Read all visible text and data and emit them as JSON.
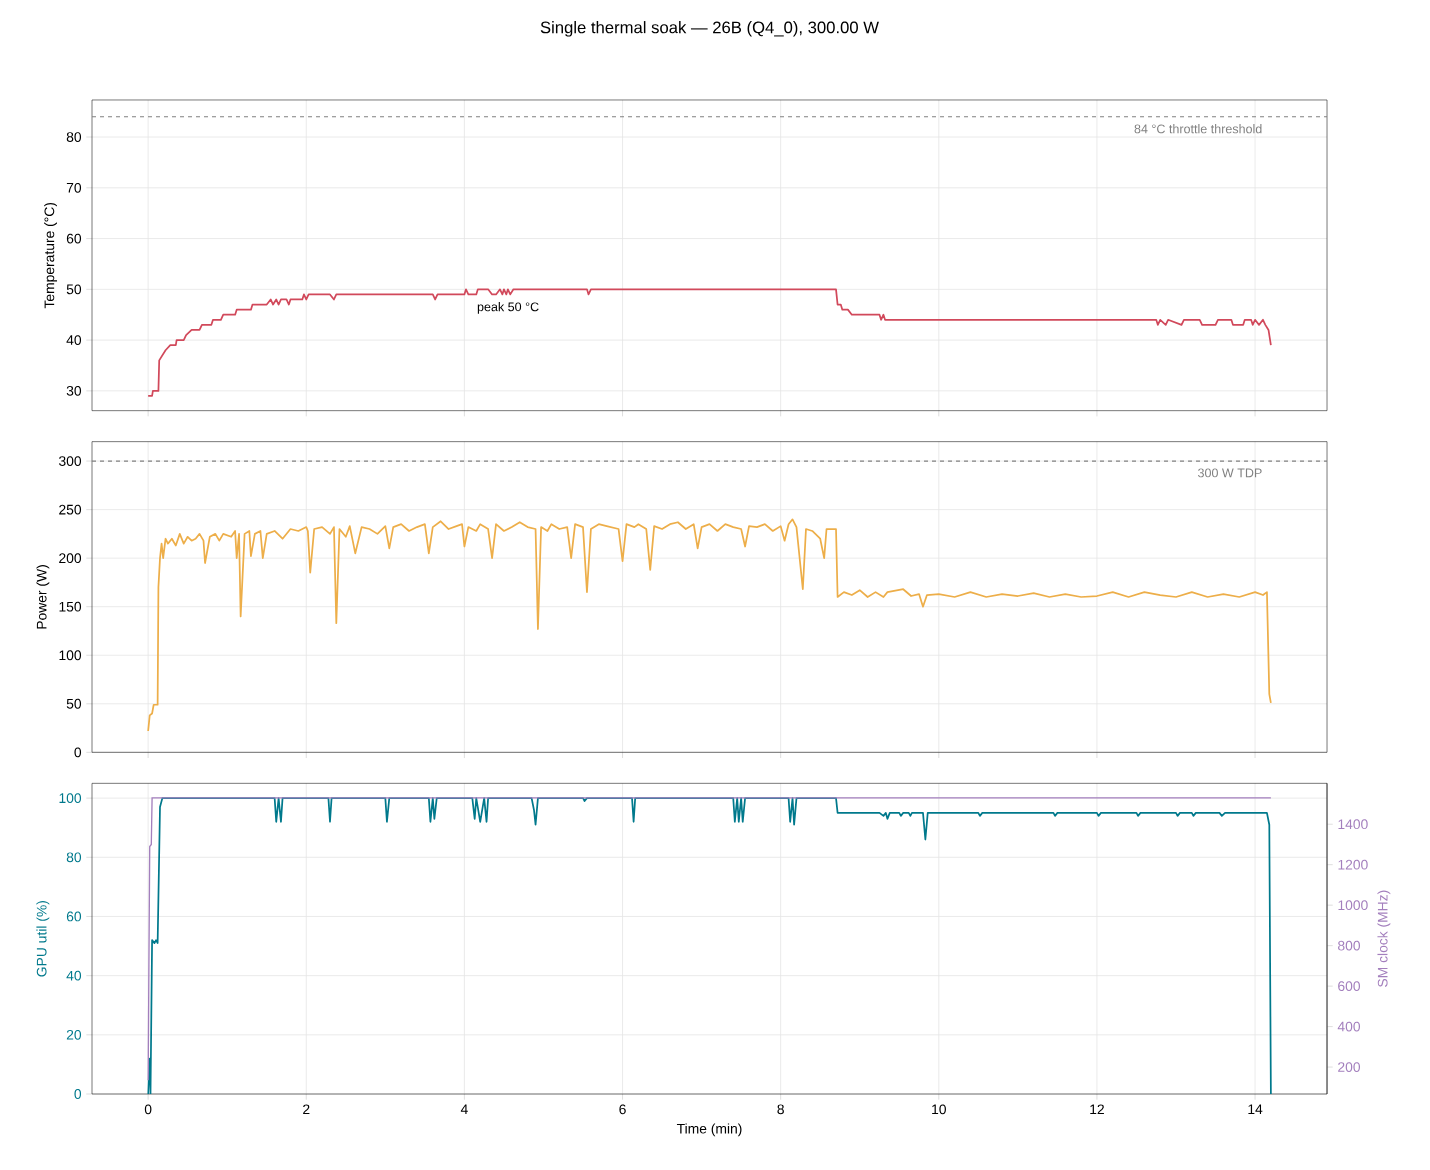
{
  "chart_data": [
    {
      "type": "line",
      "title": "Single thermal soak — 26B (Q4_0), 300.00 W",
      "ylabel": "Temperature (°C)",
      "tick_labels": "y",
      "grid": true,
      "xlim": [
        -0.71,
        14.91
      ],
      "xticks": [
        0,
        2,
        4,
        6,
        8,
        10,
        12,
        14
      ],
      "ylim": [
        26.1,
        87.3
      ],
      "yticks": [
        30,
        40,
        50,
        60,
        70,
        80
      ],
      "ref_lines": [
        {
          "axis": "y",
          "value": 84,
          "label": "84 °C throttle threshold",
          "color": "#808080",
          "line_style": "dashed"
        }
      ],
      "annotations": [
        {
          "text": "peak 50 °C",
          "x": 4.1,
          "y": 50
        }
      ],
      "series": [
        {
          "color": "#d1495b",
          "x": [
            0,
            0.05,
            0.06,
            0.13,
            0.14,
            0.18,
            0.22,
            0.28,
            0.35,
            0.36,
            0.45,
            0.48,
            0.55,
            0.65,
            0.68,
            0.8,
            0.82,
            0.92,
            0.95,
            1.1,
            1.12,
            1.3,
            1.32,
            1.5,
            1.55,
            1.58,
            1.62,
            1.65,
            1.68,
            1.75,
            1.78,
            1.8,
            1.95,
            1.97,
            2.0,
            2.03,
            2.3,
            2.35,
            2.38,
            3.6,
            3.63,
            3.66,
            4.0,
            4.02,
            4.05,
            4.15,
            4.17,
            4.3,
            4.35,
            4.4,
            4.45,
            4.48,
            4.5,
            4.53,
            4.55,
            4.58,
            4.62,
            5.55,
            5.57,
            5.6,
            8.7,
            8.72,
            8.76,
            8.78,
            8.85,
            8.9,
            9.25,
            9.27,
            9.3,
            9.32,
            12.75,
            12.77,
            12.8,
            12.87,
            12.9,
            13.07,
            13.1,
            13.3,
            13.33,
            13.5,
            13.53,
            13.7,
            13.72,
            13.85,
            13.87,
            13.95,
            13.97,
            14.0,
            14.05,
            14.1,
            14.13,
            14.17,
            14.2
          ],
          "values": [
            29,
            29,
            30,
            30,
            36,
            37,
            38,
            39,
            39,
            40,
            40,
            41,
            42,
            42,
            43,
            43,
            44,
            44,
            45,
            45,
            46,
            46,
            47,
            47,
            48,
            47,
            48,
            47,
            48,
            48,
            47,
            48,
            48,
            49,
            48,
            49,
            49,
            48,
            49,
            49,
            48,
            49,
            49,
            50,
            49,
            49,
            50,
            50,
            49,
            49,
            50,
            49,
            50,
            49,
            50,
            49,
            50,
            50,
            49,
            50,
            50,
            47,
            47,
            46,
            46,
            45,
            45,
            44,
            45,
            44,
            44,
            43,
            44,
            43,
            44,
            43,
            44,
            44,
            43,
            43,
            44,
            44,
            43,
            43,
            44,
            44,
            43,
            44,
            43,
            44,
            43,
            42,
            39
          ]
        }
      ]
    },
    {
      "type": "line",
      "ylabel": "Power (W)",
      "tick_labels": "y",
      "grid": true,
      "xlim": [
        -0.71,
        14.91
      ],
      "xticks": [
        0,
        2,
        4,
        6,
        8,
        10,
        12,
        14
      ],
      "ylim": [
        0,
        320
      ],
      "yticks": [
        0,
        50,
        100,
        150,
        200,
        250,
        300
      ],
      "ref_lines": [
        {
          "axis": "y",
          "value": 300,
          "label": "300 W TDP",
          "color": "#808080",
          "line_style": "dashed"
        }
      ],
      "series": [
        {
          "color": "#edae49",
          "x": [
            0,
            0.02,
            0.05,
            0.07,
            0.12,
            0.13,
            0.15,
            0.17,
            0.19,
            0.22,
            0.25,
            0.3,
            0.35,
            0.4,
            0.45,
            0.5,
            0.55,
            0.6,
            0.65,
            0.7,
            0.72,
            0.78,
            0.85,
            0.9,
            0.95,
            1.05,
            1.1,
            1.12,
            1.15,
            1.17,
            1.22,
            1.28,
            1.3,
            1.35,
            1.42,
            1.45,
            1.5,
            1.6,
            1.7,
            1.8,
            1.9,
            2.0,
            2.02,
            2.05,
            2.1,
            2.2,
            2.3,
            2.35,
            2.38,
            2.42,
            2.5,
            2.55,
            2.62,
            2.7,
            2.8,
            2.9,
            3.0,
            3.05,
            3.1,
            3.2,
            3.3,
            3.4,
            3.5,
            3.55,
            3.6,
            3.7,
            3.8,
            3.9,
            3.97,
            4.0,
            4.05,
            4.15,
            4.2,
            4.3,
            4.35,
            4.4,
            4.5,
            4.6,
            4.7,
            4.8,
            4.9,
            4.93,
            4.97,
            5.05,
            5.1,
            5.2,
            5.3,
            5.35,
            5.4,
            5.5,
            5.55,
            5.6,
            5.7,
            5.8,
            5.95,
            6.0,
            6.05,
            6.15,
            6.2,
            6.3,
            6.35,
            6.4,
            6.5,
            6.6,
            6.7,
            6.8,
            6.9,
            6.95,
            7.0,
            7.1,
            7.2,
            7.3,
            7.4,
            7.5,
            7.55,
            7.6,
            7.7,
            7.8,
            7.9,
            8.0,
            8.05,
            8.1,
            8.15,
            8.2,
            8.28,
            8.32,
            8.4,
            8.5,
            8.55,
            8.58,
            8.7,
            8.72,
            8.8,
            8.9,
            9.0,
            9.1,
            9.2,
            9.3,
            9.35,
            9.55,
            9.65,
            9.75,
            9.8,
            9.85,
            10.0,
            10.2,
            10.4,
            10.6,
            10.8,
            11.0,
            11.2,
            11.4,
            11.6,
            11.8,
            12.0,
            12.2,
            12.4,
            12.6,
            12.8,
            13.0,
            13.2,
            13.4,
            13.6,
            13.8,
            14.0,
            14.1,
            14.15,
            14.18,
            14.2
          ],
          "values": [
            22,
            38,
            40,
            49,
            49,
            170,
            200,
            215,
            200,
            220,
            215,
            220,
            213,
            225,
            215,
            222,
            218,
            220,
            225,
            218,
            195,
            222,
            225,
            218,
            225,
            222,
            228,
            200,
            225,
            140,
            225,
            228,
            202,
            225,
            228,
            200,
            225,
            228,
            220,
            230,
            228,
            232,
            228,
            185,
            230,
            232,
            225,
            232,
            133,
            230,
            222,
            233,
            205,
            232,
            230,
            225,
            233,
            210,
            232,
            235,
            228,
            232,
            235,
            205,
            232,
            238,
            230,
            233,
            235,
            212,
            232,
            228,
            235,
            230,
            200,
            235,
            228,
            232,
            237,
            232,
            230,
            127,
            232,
            228,
            235,
            230,
            232,
            200,
            235,
            232,
            165,
            230,
            235,
            233,
            230,
            197,
            235,
            232,
            235,
            230,
            188,
            233,
            230,
            235,
            237,
            230,
            235,
            210,
            232,
            235,
            228,
            235,
            232,
            230,
            212,
            233,
            232,
            235,
            228,
            233,
            218,
            235,
            240,
            232,
            168,
            230,
            228,
            220,
            200,
            230,
            230,
            160,
            165,
            162,
            167,
            160,
            165,
            160,
            165,
            168,
            161,
            163,
            150,
            162,
            163,
            160,
            165,
            160,
            163,
            161,
            164,
            160,
            163,
            160,
            161,
            165,
            160,
            165,
            162,
            160,
            165,
            160,
            163,
            160,
            165,
            162,
            165,
            60,
            51
          ]
        }
      ]
    },
    {
      "type": "line",
      "xlabel": "Time (min)",
      "ylabel": "GPU util (%)",
      "y2label": "SM clock (MHz)",
      "grid": true,
      "xlim": [
        -0.71,
        14.91
      ],
      "xticks": [
        0,
        2,
        4,
        6,
        8,
        10,
        12,
        14
      ],
      "ylim": [
        0,
        105
      ],
      "yticks": [
        0,
        20,
        40,
        60,
        80,
        100
      ],
      "y2lim": [
        67,
        1602
      ],
      "y2ticks": [
        200,
        400,
        600,
        800,
        1000,
        1200,
        1400
      ],
      "series": [
        {
          "color": "#a37fbd",
          "axis": "y2",
          "x": [
            0,
            0.02,
            0.04,
            0.05,
            14.2
          ],
          "values": [
            135,
            1290,
            1300,
            1530,
            1530
          ]
        },
        {
          "color": "#00798c",
          "x": [
            0,
            0.02,
            0.03,
            0.05,
            0.08,
            0.1,
            0.12,
            0.15,
            0.18,
            1.6,
            1.62,
            1.65,
            1.68,
            1.7,
            2.28,
            2.3,
            2.32,
            3.0,
            3.02,
            3.05,
            3.55,
            3.57,
            3.6,
            3.62,
            3.65,
            4.1,
            4.13,
            4.15,
            4.2,
            4.25,
            4.28,
            4.3,
            4.85,
            4.88,
            4.9,
            4.93,
            5.5,
            5.52,
            5.55,
            6.12,
            6.14,
            6.16,
            7.4,
            7.42,
            7.45,
            7.47,
            7.5,
            7.52,
            7.55,
            8.1,
            8.12,
            8.15,
            8.17,
            8.2,
            8.7,
            8.72,
            9.25,
            9.3,
            9.33,
            9.35,
            9.38,
            9.5,
            9.52,
            9.55,
            9.62,
            9.64,
            9.66,
            9.8,
            9.83,
            9.86,
            10.5,
            10.52,
            10.55,
            11.45,
            11.47,
            11.5,
            12.0,
            12.02,
            12.05,
            12.5,
            12.52,
            12.55,
            13.0,
            13.02,
            13.05,
            13.2,
            13.22,
            13.25,
            13.55,
            13.58,
            13.62,
            14.15,
            14.18,
            14.2
          ],
          "values": [
            0,
            12,
            0,
            52,
            51,
            52,
            51,
            97,
            100,
            100,
            92,
            100,
            92,
            100,
            100,
            92,
            100,
            100,
            92,
            100,
            100,
            92,
            100,
            93,
            100,
            100,
            93,
            100,
            92,
            100,
            92,
            100,
            100,
            96,
            91,
            100,
            100,
            99,
            100,
            100,
            92,
            100,
            100,
            92,
            100,
            92,
            100,
            92,
            100,
            100,
            92,
            100,
            91,
            100,
            100,
            95,
            95,
            94,
            95,
            93,
            95,
            95,
            94,
            95,
            95,
            94,
            95,
            95,
            86,
            95,
            95,
            94,
            95,
            95,
            94,
            95,
            95,
            94,
            95,
            95,
            94,
            95,
            95,
            94,
            95,
            95,
            94,
            95,
            95,
            94,
            95,
            95,
            91,
            0
          ]
        }
      ]
    }
  ]
}
